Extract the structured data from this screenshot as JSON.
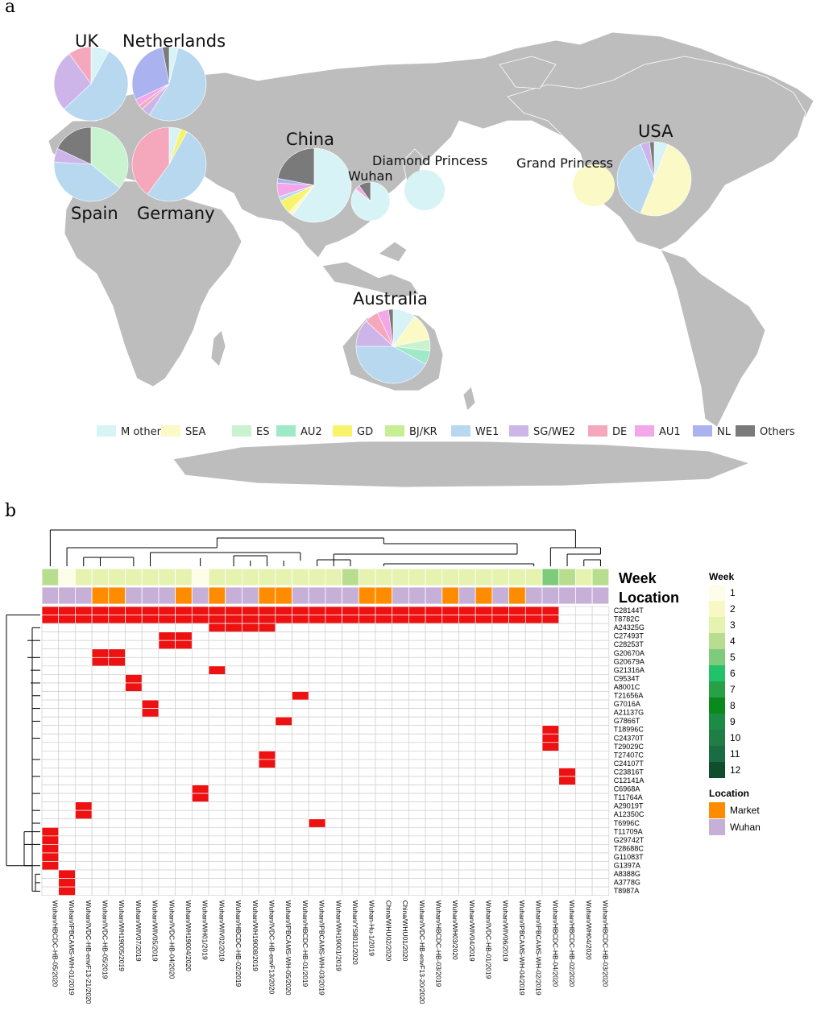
{
  "panel_a": {
    "letter": "a",
    "legend": [
      {
        "label": "M others",
        "color": "#d8f3f6"
      },
      {
        "label": "SEA",
        "color": "#fbf9c6"
      },
      {
        "label": "ES",
        "color": "#c9f3cf"
      },
      {
        "label": "AU2",
        "color": "#9ee9c8"
      },
      {
        "label": "GD",
        "color": "#f7f36a"
      },
      {
        "label": "BJ/KR",
        "color": "#c5ef92"
      },
      {
        "label": "WE1",
        "color": "#b8d8f0"
      },
      {
        "label": "SG/WE2",
        "color": "#cdb5ea"
      },
      {
        "label": "DE",
        "color": "#f5a8bc"
      },
      {
        "label": "AU1",
        "color": "#f3a6e8"
      },
      {
        "label": "NL",
        "color": "#aab3ef"
      },
      {
        "label": "Others",
        "color": "#7a7a7a"
      }
    ],
    "pies": [
      {
        "name": "UK",
        "label": "UK",
        "slices": [
          0.08,
          0,
          0,
          0,
          0,
          0,
          0.55,
          0.27,
          0.1,
          0,
          0,
          0
        ]
      },
      {
        "name": "Netherlands",
        "label": "Netherlands",
        "slices": [
          0.04,
          0,
          0,
          0,
          0,
          0,
          0.55,
          0.04,
          0.02,
          0.03,
          0.29,
          0.03
        ]
      },
      {
        "name": "Spain",
        "label": "Spain",
        "slices": [
          0,
          0,
          0.36,
          0,
          0,
          0,
          0.4,
          0.06,
          0,
          0,
          0,
          0.18
        ]
      },
      {
        "name": "Germany",
        "label": "Germany",
        "slices": [
          0.05,
          0,
          0,
          0,
          0.03,
          0,
          0.52,
          0,
          0.4,
          0,
          0,
          0
        ]
      },
      {
        "name": "China",
        "label": "China",
        "slices": [
          0.6,
          0.02,
          0,
          0,
          0.06,
          0,
          0.02,
          0,
          0,
          0.06,
          0.02,
          0.22
        ]
      },
      {
        "name": "Wuhan",
        "label": "Wuhan",
        "slices": [
          0.86,
          0,
          0,
          0,
          0,
          0,
          0,
          0,
          0,
          0.04,
          0,
          0.1
        ]
      },
      {
        "name": "Diamond Princess",
        "label": "Diamond Princess",
        "slices": [
          1,
          0,
          0,
          0,
          0,
          0,
          0,
          0,
          0,
          0,
          0,
          0
        ]
      },
      {
        "name": "Grand Princess",
        "label": "Grand Princess",
        "slices": [
          0,
          1,
          0,
          0,
          0,
          0,
          0,
          0,
          0,
          0,
          0,
          0
        ]
      },
      {
        "name": "USA",
        "label": "USA",
        "slices": [
          0.06,
          0.5,
          0,
          0,
          0,
          0,
          0.38,
          0.04,
          0,
          0,
          0,
          0.02
        ]
      },
      {
        "name": "Australia",
        "label": "Australia",
        "slices": [
          0.1,
          0.12,
          0.05,
          0.06,
          0,
          0,
          0.42,
          0.12,
          0.06,
          0.05,
          0,
          0.02
        ]
      }
    ]
  },
  "panel_b": {
    "letter": "b",
    "week_title": "Week",
    "location_title": "Location",
    "legend_week_title": "Week",
    "legend_location_title": "Location",
    "week_legend": [
      {
        "label": "1",
        "color": "#fdfde9"
      },
      {
        "label": "2",
        "color": "#f7f8c4"
      },
      {
        "label": "3",
        "color": "#e6f2b0"
      },
      {
        "label": "4",
        "color": "#b9dd8e"
      },
      {
        "label": "5",
        "color": "#7fcb7c"
      },
      {
        "label": "6",
        "color": "#22c26a"
      },
      {
        "label": "7",
        "color": "#27a046"
      },
      {
        "label": "8",
        "color": "#0a8a1d"
      },
      {
        "label": "9",
        "color": "#1c8b43"
      },
      {
        "label": "10",
        "color": "#1f7d45"
      },
      {
        "label": "11",
        "color": "#1a6c43"
      },
      {
        "label": "12",
        "color": "#0e4e2d"
      }
    ],
    "location_legend": [
      {
        "label": "Market",
        "color": "#ff8c00"
      },
      {
        "label": "Wuhan",
        "color": "#c7b0d8"
      }
    ],
    "chart_data": {
      "type": "heatmap",
      "columns": [
        "Wuhan/HBCDC-HB-05/2020",
        "Wuhan/IPBCAMS-WH-01/2019",
        "Wuhan/IVDC-HB-envF13-21/2020",
        "Wuhan/IVDC-HB-05/2019",
        "Wuhan/WH19005/2019",
        "Wuhan/WIV07/2019",
        "Wuhan/WIV05/2019",
        "Wuhan/IVDC-HB-04/2020",
        "Wuhan/WH19004/2020",
        "Wuhan/WH01/2019",
        "Wuhan/WIV02/2019",
        "Wuhan/HBCDC-HB-02/2019",
        "Wuhan/WH19008/2019",
        "Wuhan/IVDC-HB-envF13/2020",
        "Wuhan/IPBCAMS-WH-05/2020",
        "Wuhan/HBCDC-HB-01/2019",
        "Wuhan/IPBCAMS-WH-03/2019",
        "Wuhan/WH19001/2019",
        "Wuhan/YS8011/2020",
        "Wuhan-Hu-1/2019",
        "China/WHU02/2020",
        "China/WHU01/2020",
        "Wuhan/IVDC-HB-envF13-20/2020",
        "Wuhan/HBCDC-HB-03/2019",
        "Wuhan/WH03/2020",
        "Wuhan/WIV04/2019",
        "Wuhan/IVDC-HB-01/2019",
        "Wuhan/WIV06/2019",
        "Wuhan/IPBCAMS-WH-04/2019",
        "Wuhan/IPBCAMS-WH-02/2019",
        "Wuhan/HBCDC-HB-04/2020",
        "Wuhan/HBCDC-HB-02/2020",
        "Wuhan/WH04/2020",
        "Wuhan/HBCDC-HB-03/2020"
      ],
      "week": [
        4,
        1,
        3,
        3,
        3,
        3,
        3,
        3,
        3,
        1,
        3,
        3,
        3,
        3,
        3,
        3,
        3,
        3,
        4,
        3,
        3,
        3,
        3,
        3,
        3,
        3,
        3,
        3,
        3,
        3,
        5,
        4,
        3,
        4
      ],
      "location": [
        "W",
        "W",
        "W",
        "M",
        "M",
        "W",
        "W",
        "W",
        "M",
        "W",
        "M",
        "W",
        "W",
        "M",
        "M",
        "W",
        "W",
        "W",
        "W",
        "M",
        "M",
        "W",
        "W",
        "W",
        "M",
        "W",
        "M",
        "W",
        "M",
        "W",
        "W",
        "W",
        "W",
        "W"
      ],
      "rows": [
        "C28144T",
        "T8782C",
        "A24325G",
        "C27493T",
        "C28253T",
        "G20670A",
        "G20679A",
        "G21316A",
        "C9534T",
        "A8001C",
        "T21656A",
        "G7016A",
        "A21137G",
        "G7866T",
        "T18996C",
        "C24370T",
        "T29029C",
        "T27407C",
        "C24107T",
        "C23816T",
        "C12141A",
        "C6968A",
        "T11764A",
        "A29019T",
        "A12350C",
        "T6996C",
        "T11709A",
        "G29742T",
        "T28688C",
        "G11083T",
        "G1397A",
        "A8388G",
        "A3778G",
        "T8987A"
      ],
      "cells": [
        [
          0,
          "0-30"
        ],
        [
          1,
          "0-30"
        ],
        [
          2,
          "10-13"
        ],
        [
          3,
          "7-8"
        ],
        [
          4,
          "7-8"
        ],
        [
          5,
          "3-4"
        ],
        [
          6,
          "3-4"
        ],
        [
          7,
          "10"
        ],
        [
          8,
          "5"
        ],
        [
          9,
          "5"
        ],
        [
          10,
          "15"
        ],
        [
          11,
          "6"
        ],
        [
          12,
          "6"
        ],
        [
          13,
          "14"
        ],
        [
          14,
          "30"
        ],
        [
          15,
          "30"
        ],
        [
          16,
          "30"
        ],
        [
          17,
          "13"
        ],
        [
          18,
          "13"
        ],
        [
          19,
          "31"
        ],
        [
          20,
          "31"
        ],
        [
          21,
          "9"
        ],
        [
          22,
          "9"
        ],
        [
          23,
          "2"
        ],
        [
          24,
          "2"
        ],
        [
          25,
          "16"
        ],
        [
          26,
          "0"
        ],
        [
          27,
          "0"
        ],
        [
          28,
          "0"
        ],
        [
          29,
          "0"
        ],
        [
          30,
          "0"
        ],
        [
          31,
          "1"
        ],
        [
          32,
          "1"
        ],
        [
          33,
          "1"
        ]
      ],
      "value_color": "#ee1111"
    }
  }
}
